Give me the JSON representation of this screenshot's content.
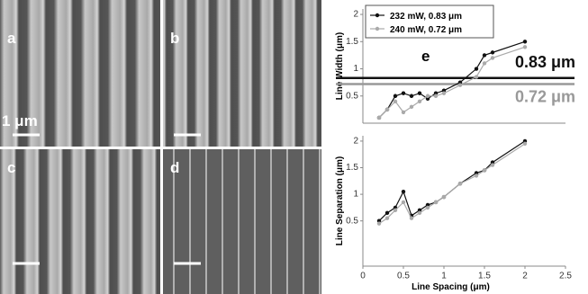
{
  "panels": [
    {
      "label": "a",
      "scale_label": "1 μm"
    },
    {
      "label": "b"
    },
    {
      "label": "c"
    },
    {
      "label": "d"
    }
  ],
  "chart_data": [
    {
      "type": "line",
      "panel_label": "e",
      "y_label": "Line Width (μm)",
      "xlim": [
        0,
        2.5
      ],
      "ylim": [
        0,
        2.1
      ],
      "yticks": [
        0.5,
        1,
        1.5,
        2
      ],
      "legend": "top-left",
      "x": [
        0.2,
        0.3,
        0.4,
        0.5,
        0.6,
        0.7,
        0.8,
        0.9,
        1.0,
        1.2,
        1.4,
        1.5,
        1.6,
        2.0
      ],
      "series": [
        {
          "name": "232 mW, 0.83 μm",
          "color": "#111111",
          "values": [
            0.1,
            0.25,
            0.5,
            0.55,
            0.5,
            0.55,
            0.45,
            0.55,
            0.6,
            0.75,
            1.0,
            1.25,
            1.3,
            1.5
          ]
        },
        {
          "name": "240 mW, 0.72 μm",
          "color": "#aaaaaa",
          "values": [
            0.1,
            0.25,
            0.4,
            0.2,
            0.3,
            0.4,
            0.5,
            0.5,
            0.55,
            0.7,
            0.85,
            1.1,
            1.2,
            1.4
          ]
        }
      ],
      "reference_lines": [
        {
          "value": 0.83,
          "label": "0.83 μm",
          "color": "#111111"
        },
        {
          "value": 0.72,
          "label": "0.72 μm",
          "color": "#999999"
        }
      ]
    },
    {
      "type": "line",
      "y_label": "Line Separation (μm)",
      "x_label": "Line Spacing (μm)",
      "xlim": [
        0,
        2.5
      ],
      "xticks": [
        0,
        0.5,
        1,
        1.5,
        2,
        2.5
      ],
      "ylim": [
        -0.35,
        2.1
      ],
      "yticks": [
        0.5,
        1,
        1.5,
        2
      ],
      "x": [
        0.2,
        0.3,
        0.4,
        0.5,
        0.6,
        0.7,
        0.8,
        0.9,
        1.0,
        1.2,
        1.4,
        1.5,
        1.6,
        2.0
      ],
      "series": [
        {
          "name": "232 mW, 0.83 μm",
          "color": "#111111",
          "values": [
            0.5,
            0.65,
            0.75,
            1.05,
            0.6,
            0.7,
            0.8,
            0.85,
            0.95,
            1.2,
            1.4,
            1.45,
            1.6,
            2.0
          ]
        },
        {
          "name": "240 mW, 0.72 μm",
          "color": "#aaaaaa",
          "values": [
            0.45,
            0.55,
            0.7,
            0.85,
            0.55,
            0.65,
            0.75,
            0.85,
            0.95,
            1.2,
            1.35,
            1.45,
            1.55,
            1.95
          ]
        }
      ]
    }
  ]
}
